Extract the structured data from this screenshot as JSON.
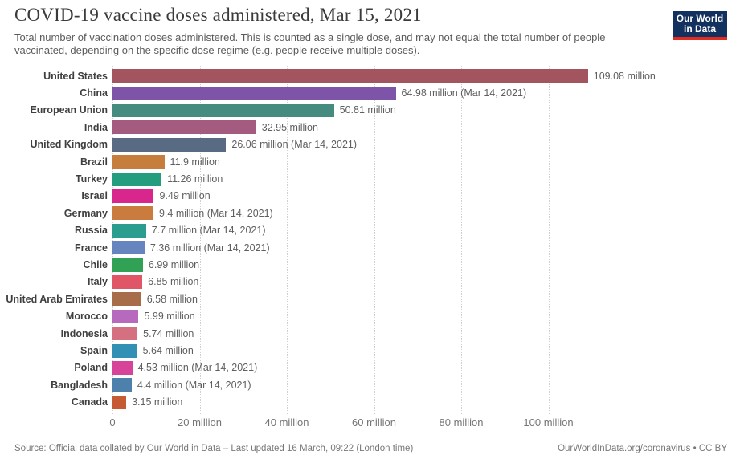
{
  "header": {
    "title": "COVID-19 vaccine doses administered, Mar 15, 2021",
    "subtitle": "Total number of vaccination doses administered. This is counted as a single dose, and may not equal the total number of people vaccinated, depending on the specific dose regime (e.g. people receive multiple doses).",
    "logo": {
      "line1": "Our World",
      "line2": "in Data",
      "bg_color": "#12315e",
      "accent_color": "#e02c21"
    }
  },
  "chart_data": {
    "type": "bar",
    "orientation": "horizontal",
    "title": "COVID-19 vaccine doses administered, Mar 15, 2021",
    "unit": "million doses",
    "categories": [
      "United States",
      "China",
      "European Union",
      "India",
      "United Kingdom",
      "Brazil",
      "Turkey",
      "Israel",
      "Germany",
      "Russia",
      "France",
      "Chile",
      "Italy",
      "United Arab Emirates",
      "Morocco",
      "Indonesia",
      "Spain",
      "Poland",
      "Bangladesh",
      "Canada"
    ],
    "values": [
      109.08,
      64.98,
      50.81,
      32.95,
      26.06,
      11.9,
      11.26,
      9.49,
      9.4,
      7.7,
      7.36,
      6.99,
      6.85,
      6.58,
      5.99,
      5.74,
      5.64,
      4.53,
      4.4,
      3.15
    ],
    "value_labels": [
      "109.08 million",
      "64.98 million (Mar 14, 2021)",
      "50.81 million",
      "32.95 million",
      "26.06 million (Mar 14, 2021)",
      "11.9 million",
      "11.26 million",
      "9.49 million",
      "9.4 million (Mar 14, 2021)",
      "7.7 million (Mar 14, 2021)",
      "7.36 million (Mar 14, 2021)",
      "6.99 million",
      "6.85 million",
      "6.58 million",
      "5.99 million",
      "5.74 million",
      "5.64 million",
      "4.53 million (Mar 14, 2021)",
      "4.4 million (Mar 14, 2021)",
      "3.15 million"
    ],
    "bar_colors": [
      "#a2555e",
      "#7d54a8",
      "#458b7f",
      "#a35b80",
      "#586b82",
      "#c77d3c",
      "#249d7f",
      "#d9268d",
      "#c97c3d",
      "#2a9d8f",
      "#6684bd",
      "#31a155",
      "#e05667",
      "#a86c4a",
      "#b669bd",
      "#d4707f",
      "#3390b5",
      "#d8439a",
      "#4d80ab",
      "#c65a33"
    ],
    "x_ticks": [
      0,
      20,
      40,
      60,
      80,
      100
    ],
    "x_tick_labels": [
      "0",
      "20 million",
      "40 million",
      "60 million",
      "80 million",
      "100 million"
    ],
    "xlim": [
      0,
      100
    ],
    "grid": "dotted-vertical",
    "legend": "none"
  },
  "footer": {
    "source": "Source: Official data collated by Our World in Data – Last updated 16 March, 09:22 (London time)",
    "link_full": "OurWorldInData.org/coronavirus • CC BY"
  }
}
